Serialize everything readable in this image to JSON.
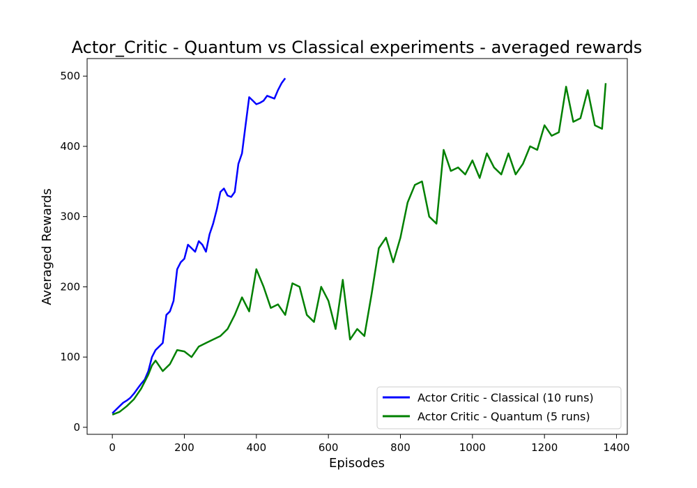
{
  "chart_data": {
    "type": "line",
    "title": "Actor_Critic - Quantum vs Classical experiments - averaged rewards",
    "xlabel": "Episodes",
    "ylabel": "Averaged Rewards",
    "xlim": [
      -70,
      1430
    ],
    "ylim": [
      -10,
      525
    ],
    "xticks": [
      0,
      200,
      400,
      600,
      800,
      1000,
      1200,
      1400
    ],
    "yticks": [
      0,
      100,
      200,
      300,
      400,
      500
    ],
    "grid": false,
    "legend_position": "lower-right",
    "series": [
      {
        "name": "Actor Critic - Classical (10 runs)",
        "color": "#0000ff",
        "x": [
          0,
          10,
          20,
          30,
          40,
          50,
          60,
          70,
          80,
          90,
          100,
          110,
          120,
          130,
          140,
          150,
          160,
          170,
          180,
          190,
          200,
          210,
          220,
          230,
          240,
          250,
          260,
          270,
          280,
          290,
          300,
          310,
          320,
          330,
          340,
          350,
          360,
          370,
          380,
          390,
          400,
          410,
          420,
          430,
          440,
          450,
          460,
          470,
          480
        ],
        "y": [
          20,
          25,
          30,
          35,
          38,
          42,
          48,
          55,
          62,
          68,
          80,
          100,
          110,
          115,
          120,
          160,
          165,
          180,
          225,
          235,
          240,
          260,
          255,
          250,
          265,
          260,
          250,
          275,
          290,
          310,
          335,
          340,
          330,
          328,
          335,
          375,
          390,
          430,
          470,
          465,
          460,
          462,
          465,
          472,
          470,
          468,
          480,
          490,
          497
        ]
      },
      {
        "name": "Actor Critic - Quantum (5 runs)",
        "color": "#008000",
        "x": [
          0,
          20,
          40,
          60,
          80,
          100,
          110,
          120,
          140,
          160,
          180,
          200,
          220,
          240,
          260,
          280,
          300,
          320,
          340,
          360,
          380,
          400,
          420,
          440,
          460,
          480,
          500,
          520,
          540,
          560,
          580,
          600,
          620,
          640,
          660,
          680,
          700,
          720,
          740,
          760,
          780,
          800,
          820,
          840,
          860,
          880,
          900,
          920,
          940,
          960,
          980,
          1000,
          1020,
          1040,
          1060,
          1080,
          1100,
          1120,
          1140,
          1160,
          1180,
          1200,
          1220,
          1240,
          1260,
          1280,
          1300,
          1320,
          1340,
          1360,
          1370
        ],
        "y": [
          18,
          22,
          30,
          40,
          55,
          75,
          88,
          95,
          80,
          90,
          110,
          108,
          100,
          115,
          120,
          125,
          130,
          140,
          160,
          185,
          165,
          225,
          200,
          170,
          175,
          160,
          205,
          200,
          160,
          150,
          200,
          180,
          140,
          210,
          125,
          140,
          130,
          190,
          255,
          270,
          235,
          270,
          320,
          345,
          350,
          300,
          290,
          395,
          365,
          370,
          360,
          380,
          355,
          390,
          370,
          360,
          390,
          360,
          375,
          400,
          395,
          430,
          415,
          420,
          485,
          435,
          440,
          480,
          430,
          425,
          490
        ]
      }
    ]
  }
}
